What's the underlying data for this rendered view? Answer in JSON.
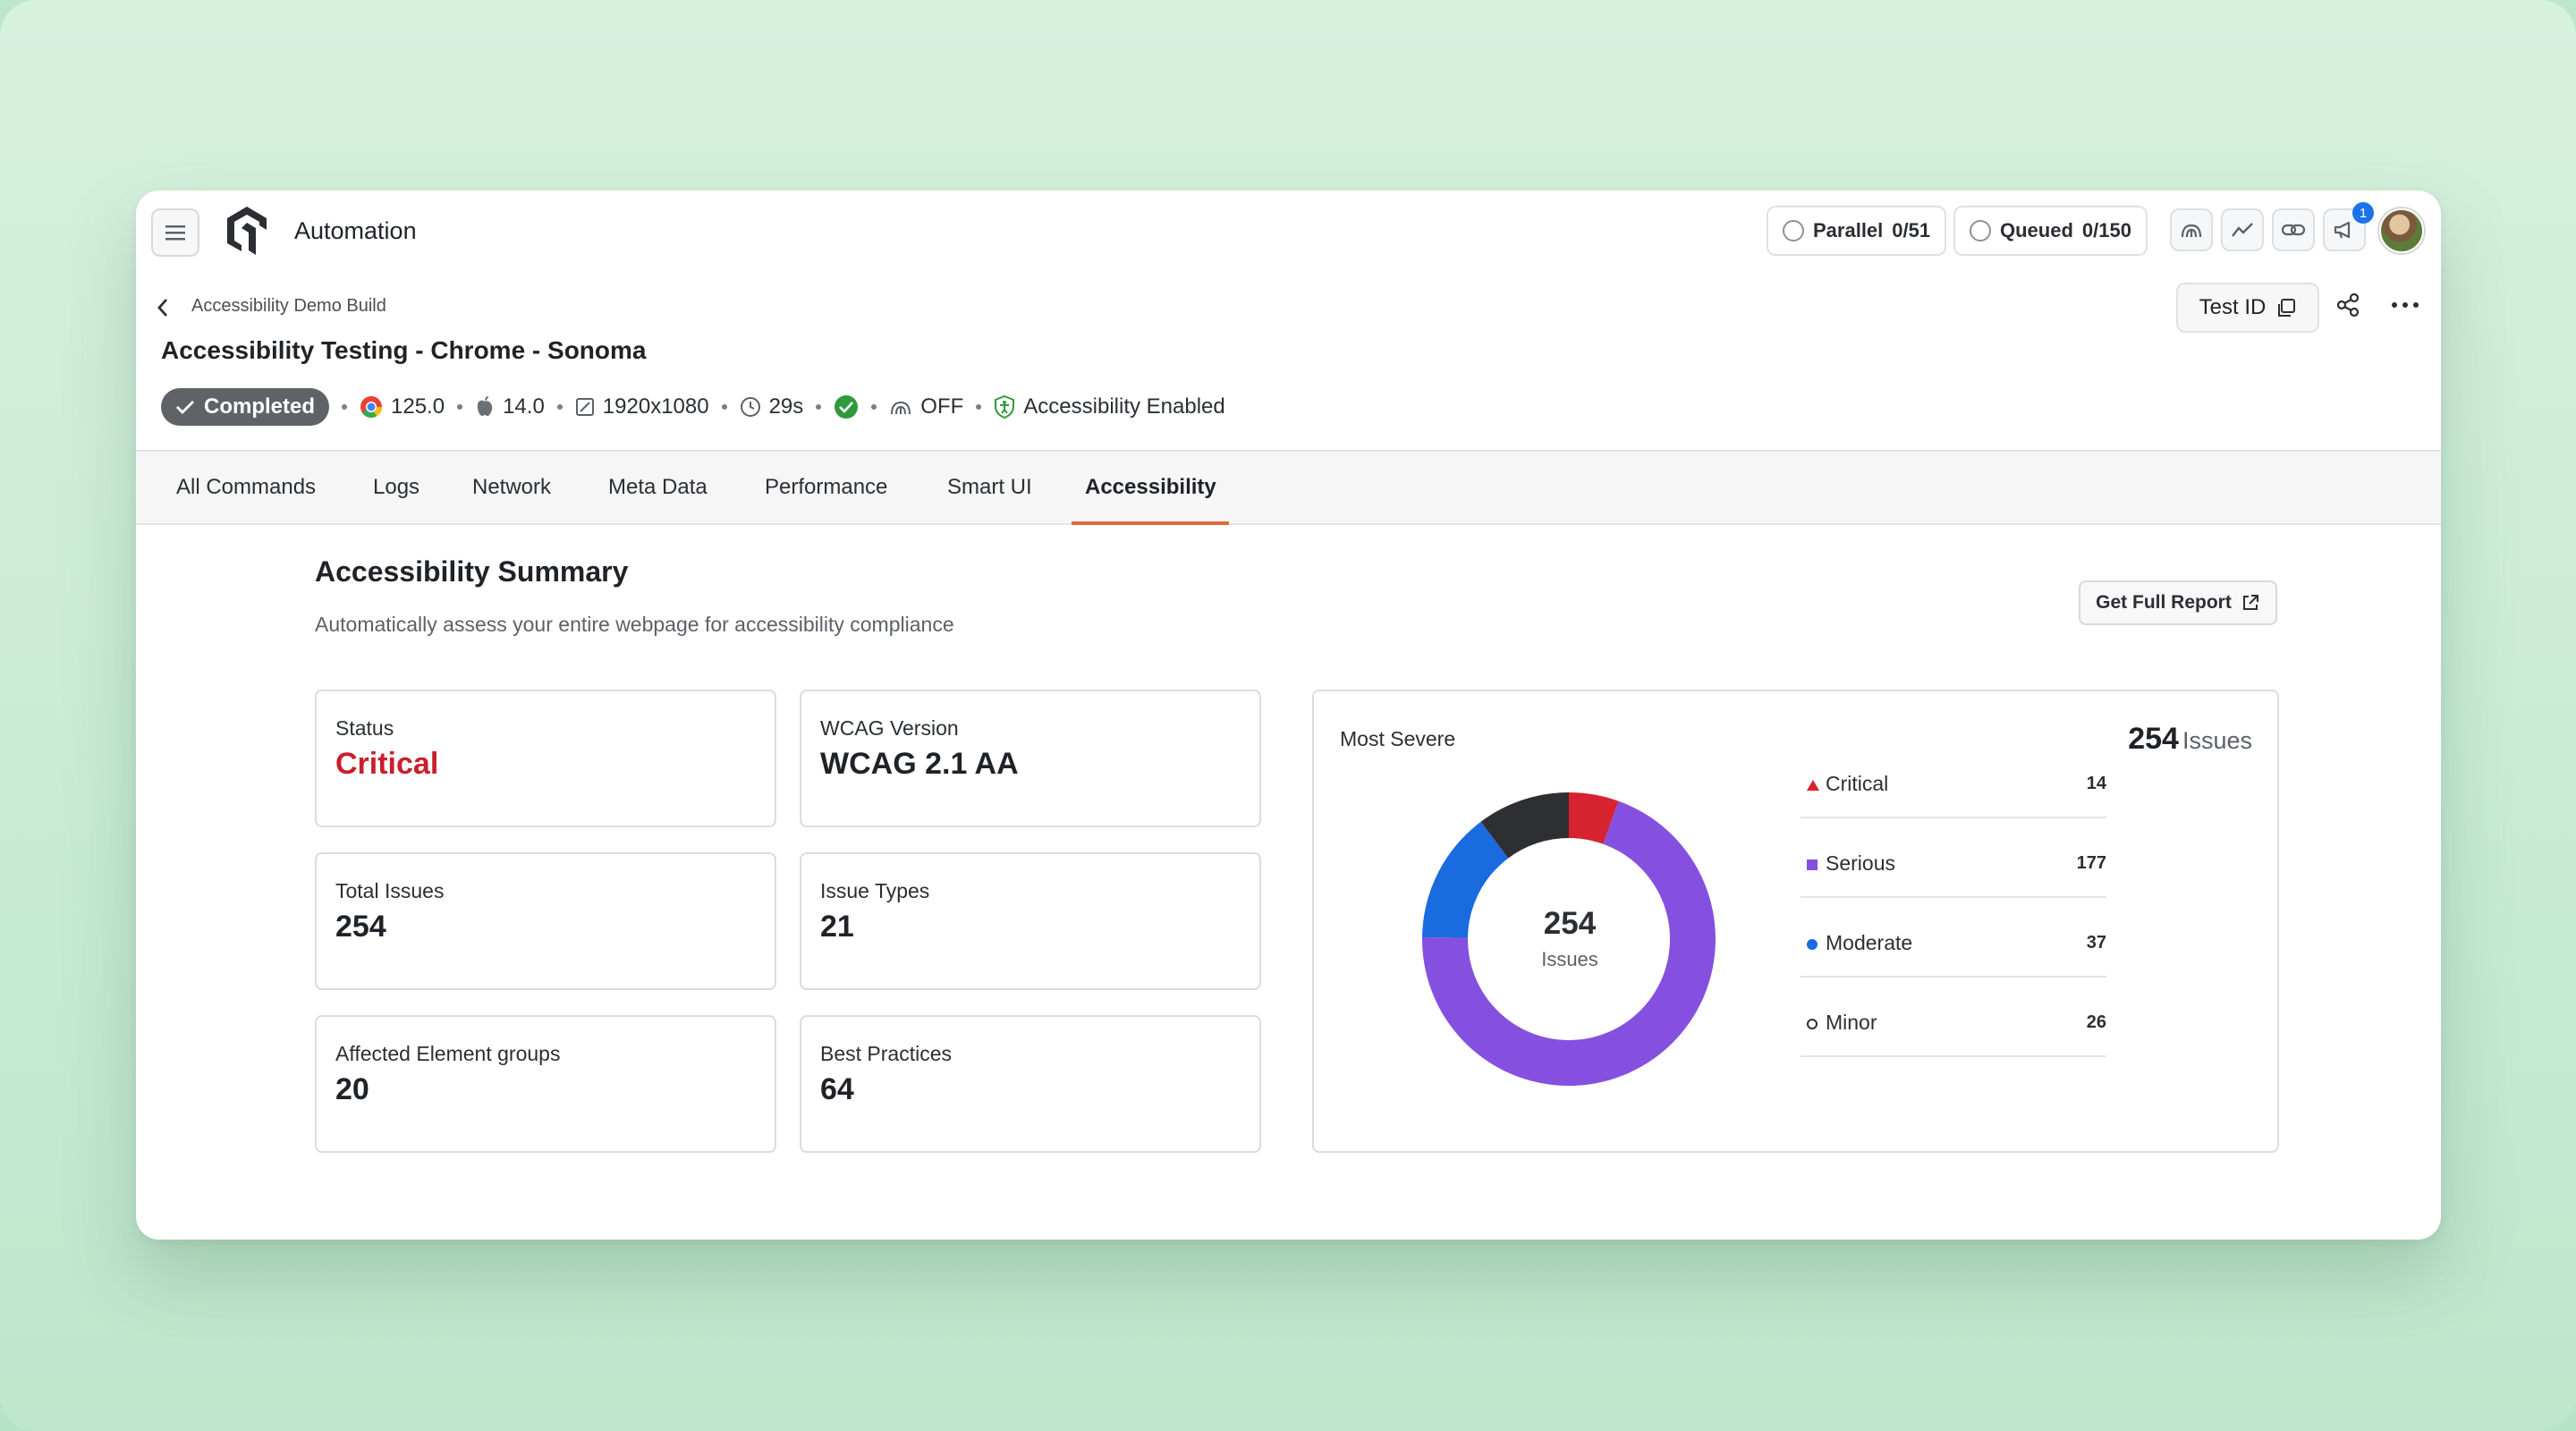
{
  "app": {
    "title": "Automation"
  },
  "header": {
    "parallel_label": "Parallel",
    "parallel_value": "0/51",
    "queued_label": "Queued",
    "queued_value": "0/150",
    "notification_count": "1"
  },
  "build": {
    "breadcrumb": "Accessibility Demo Build",
    "title": "Accessibility Testing - Chrome - Sonoma",
    "test_id_label": "Test ID",
    "status": "Completed",
    "browser_version": "125.0",
    "os_version": "14.0",
    "resolution": "1920x1080",
    "duration": "29s",
    "tunnel_state": "OFF",
    "accessibility_label": "Accessibility Enabled"
  },
  "tabs": [
    "All Commands",
    "Logs",
    "Network",
    "Meta Data",
    "Performance",
    "Smart UI",
    "Accessibility"
  ],
  "active_tab": "Accessibility",
  "summary": {
    "title": "Accessibility Summary",
    "subtitle": "Automatically assess your entire webpage for accessibility compliance",
    "report_button": "Get Full Report",
    "cards": [
      {
        "label": "Status",
        "value": "Critical"
      },
      {
        "label": "WCAG Version",
        "value": "WCAG 2.1 AA"
      },
      {
        "label": "Total Issues",
        "value": "254"
      },
      {
        "label": "Issue Types",
        "value": "21"
      },
      {
        "label": "Affected Element groups",
        "value": "20"
      },
      {
        "label": "Best Practices",
        "value": "64"
      }
    ]
  },
  "severity": {
    "title": "Most Severe",
    "total": "254",
    "total_label": "Issues",
    "center_value": "254",
    "center_label": "Issues",
    "items": [
      {
        "name": "Critical",
        "count": "14",
        "color": "#d6232f"
      },
      {
        "name": "Serious",
        "count": "177",
        "color": "#8550e0"
      },
      {
        "name": "Moderate",
        "count": "37",
        "color": "#1a6be0"
      },
      {
        "name": "Minor",
        "count": "26",
        "color": "#2e2f33"
      }
    ]
  },
  "colors": {
    "accent_tab": "#e2693c",
    "status_badge": "#5f6368",
    "critical_text": "#c8202d"
  }
}
